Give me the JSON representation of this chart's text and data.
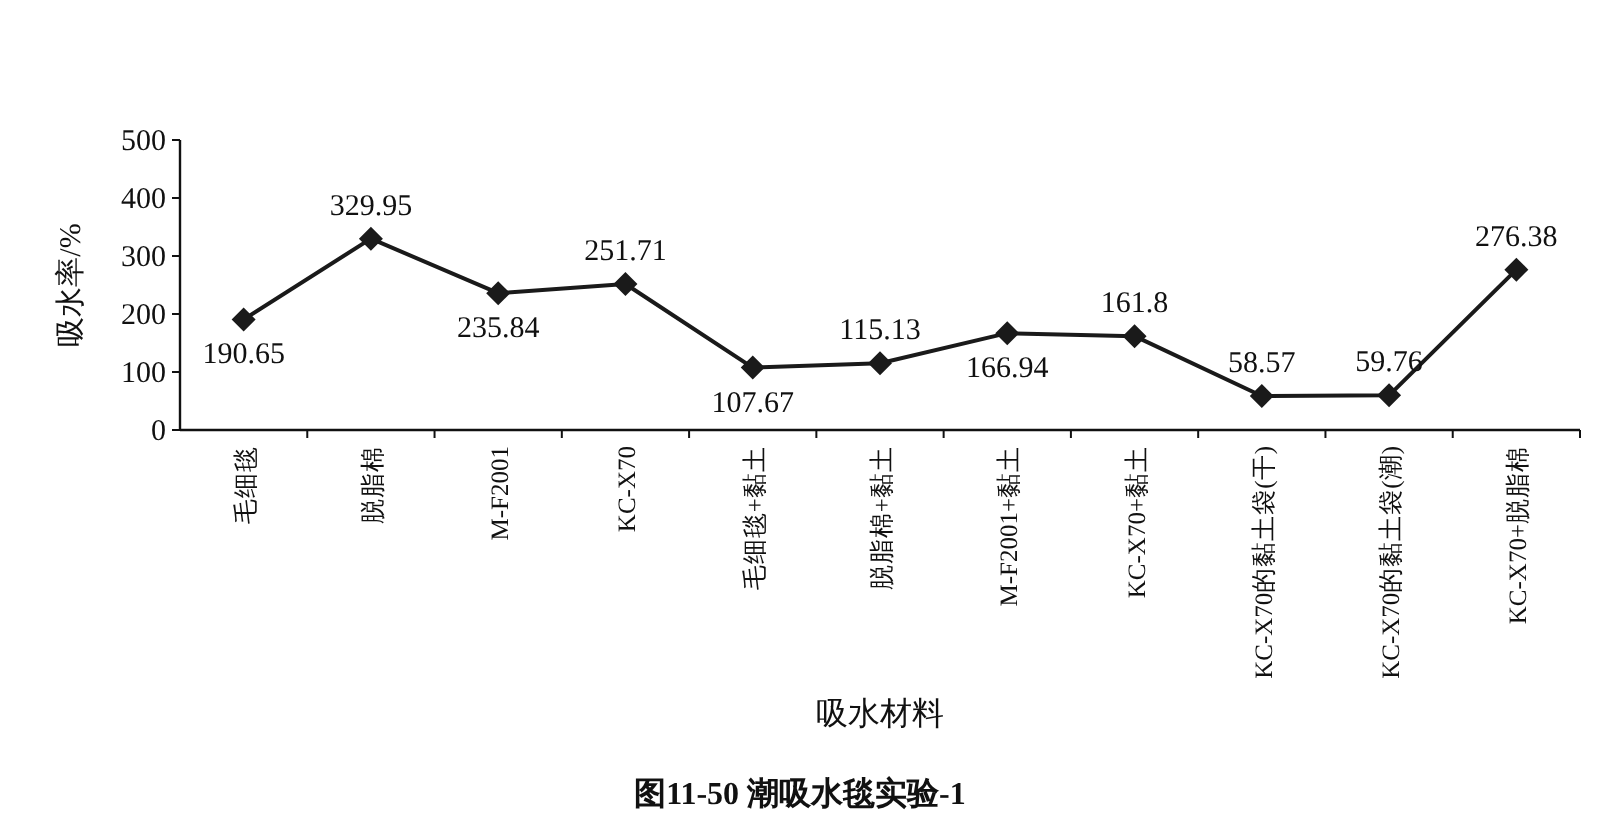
{
  "chart_data": {
    "type": "line",
    "title": "图11-50  潮吸水毯实验-1",
    "xlabel": "吸水材料",
    "ylabel": "吸水率/%",
    "categories": [
      "毛细毯",
      "脱脂棉",
      "M-F2001",
      "KC-X70",
      "毛细毯+黏土",
      "脱脂棉+黏土",
      "M-F2001+黏土",
      "KC-X70+黏土",
      "KC-X70的黏土袋(干)",
      "KC-X70的黏土袋(潮)",
      "KC-X70+脱脂棉"
    ],
    "series": [
      {
        "color": "#1a1a1a",
        "values": [
          190.65,
          329.95,
          235.84,
          251.71,
          107.67,
          115.13,
          166.94,
          161.8,
          58.57,
          59.76,
          276.38
        ]
      }
    ],
    "ylim": [
      0,
      500
    ],
    "yticks": [
      0,
      100,
      200,
      300,
      400,
      500
    ],
    "data_labels": true,
    "marker": "diamond",
    "line_style": "solid"
  }
}
